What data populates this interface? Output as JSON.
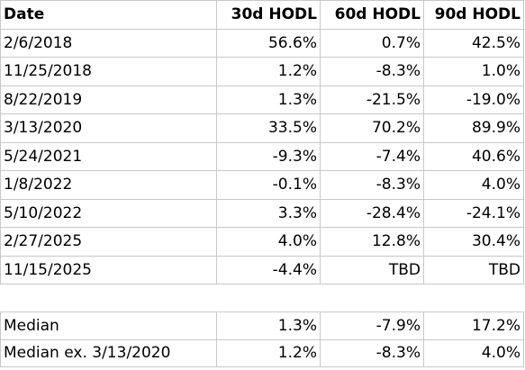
{
  "table": {
    "header": [
      "Date",
      "30d HODL",
      "60d HODL",
      "90d HODL"
    ],
    "rows": [
      [
        "2/6/2018",
        "56.6%",
        "0.7%",
        "42.5%"
      ],
      [
        "11/25/2018",
        "1.2%",
        "-8.3%",
        "1.0%"
      ],
      [
        "8/22/2019",
        "1.3%",
        "-21.5%",
        "-19.0%"
      ],
      [
        "3/13/2020",
        "33.5%",
        "70.2%",
        "89.9%"
      ],
      [
        "5/24/2021",
        "-9.3%",
        "-7.4%",
        "40.6%"
      ],
      [
        "1/8/2022",
        "-0.1%",
        "-8.3%",
        "4.0%"
      ],
      [
        "5/10/2022",
        "3.3%",
        "-28.4%",
        "-24.1%"
      ],
      [
        "2/27/2025",
        "4.0%",
        "12.8%",
        "30.4%"
      ],
      [
        "11/15/2025",
        "-4.4%",
        "TBD",
        "TBD"
      ]
    ]
  },
  "summary": {
    "rows": [
      [
        "Median",
        "1.3%",
        "-7.9%",
        "17.2%"
      ],
      [
        "Median ex. 3/13/2020",
        "1.2%",
        "-8.3%",
        "4.0%"
      ]
    ]
  }
}
